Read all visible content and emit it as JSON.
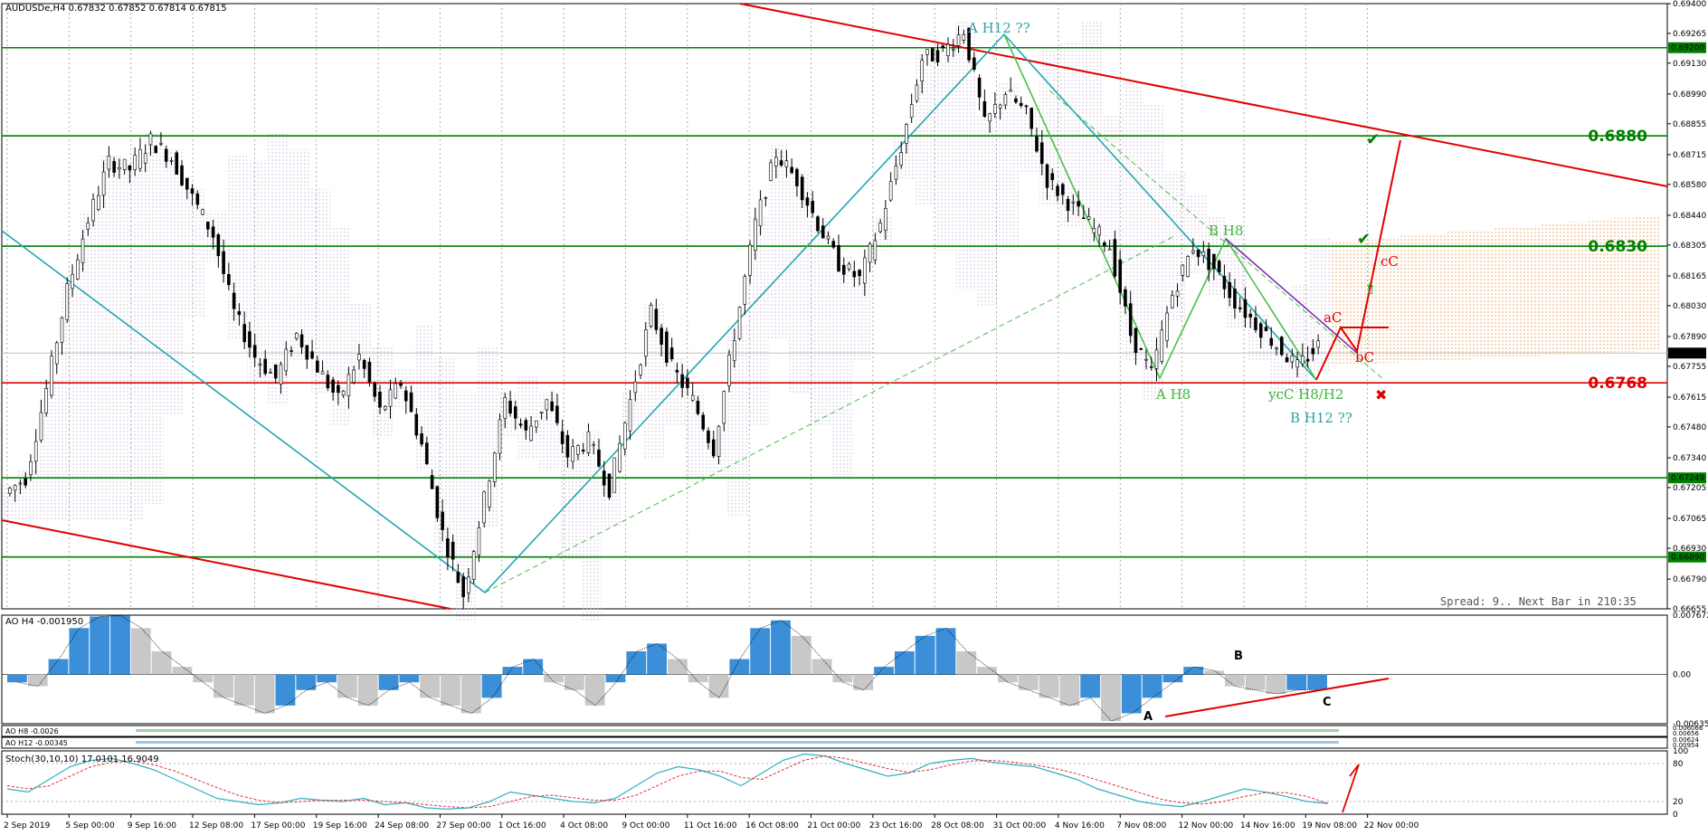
{
  "chart_data": {
    "type": "candlestick",
    "symbol_header": "AUDUSDe,H4  0.67832 0.67852 0.67814 0.67815",
    "price_ticks": [
      "0.69400",
      "0.69265",
      "0.69130",
      "0.68990",
      "0.68855",
      "0.68715",
      "0.68580",
      "0.68440",
      "0.68305",
      "0.68165",
      "0.68030",
      "0.67890",
      "0.67755",
      "0.67615",
      "0.67480",
      "0.67340",
      "0.67205",
      "0.67065",
      "0.66930",
      "0.66790",
      "0.66655"
    ],
    "ylim": [
      0.66655,
      0.694
    ],
    "time_labels": [
      "2 Sep 2019",
      "5 Sep 00:00",
      "9 Sep 16:00",
      "12 Sep 08:00",
      "17 Sep 00:00",
      "19 Sep 16:00",
      "24 Sep 08:00",
      "27 Sep 00:00",
      "1 Oct 16:00",
      "4 Oct 08:00",
      "9 Oct 00:00",
      "11 Oct 16:00",
      "16 Oct 08:00",
      "21 Oct 00:00",
      "23 Oct 16:00",
      "28 Oct 08:00",
      "31 Oct 00:00",
      "4 Nov 16:00",
      "7 Nov 08:00",
      "12 Nov 00:00",
      "14 Nov 16:00",
      "19 Nov 08:00",
      "22 Nov 00:00"
    ],
    "last_price": "0.67815",
    "price_path": [
      0.6718,
      0.6725,
      0.6765,
      0.681,
      0.6842,
      0.6868,
      0.6865,
      0.6878,
      0.687,
      0.6852,
      0.6835,
      0.68,
      0.678,
      0.677,
      0.679,
      0.6775,
      0.676,
      0.678,
      0.6755,
      0.6768,
      0.674,
      0.67,
      0.6672,
      0.6715,
      0.676,
      0.6745,
      0.676,
      0.6735,
      0.6742,
      0.672,
      0.676,
      0.68,
      0.6775,
      0.676,
      0.6738,
      0.679,
      0.684,
      0.6872,
      0.686,
      0.684,
      0.6822,
      0.6815,
      0.684,
      0.6875,
      0.6915,
      0.6918,
      0.6928,
      0.6885,
      0.69,
      0.689,
      0.686,
      0.685,
      0.684,
      0.683,
      0.679,
      0.6772,
      0.6808,
      0.683,
      0.682,
      0.6805,
      0.6795,
      0.6785,
      0.6775,
      0.6785
    ],
    "horizontal_levels": [
      {
        "price": 0.692,
        "label": "0.69200",
        "color": "#008000",
        "style": "box"
      },
      {
        "price": 0.688,
        "label": "0.6880",
        "color": "#008000",
        "style": "big"
      },
      {
        "price": 0.683,
        "label": "0.6830",
        "color": "#008000",
        "style": "big"
      },
      {
        "price": 0.6768,
        "label": "0.6768",
        "color": "#e00000",
        "style": "big"
      },
      {
        "price": 0.67249,
        "label": "0.67249",
        "color": "#008000",
        "style": "box"
      },
      {
        "price": 0.6689,
        "label": "0.66890",
        "color": "#008000",
        "style": "box"
      }
    ],
    "wave_labels": [
      {
        "text": "A H12 ??",
        "color": "#2aa6a6"
      },
      {
        "text": "B H8",
        "color": "#3cb43c"
      },
      {
        "text": "A H8",
        "color": "#3cb43c"
      },
      {
        "text": "ycC H8/H2",
        "color": "#3cb43c"
      },
      {
        "text": "B H12 ??",
        "color": "#2aa6a6"
      },
      {
        "text": "aC",
        "color": "#e00000"
      },
      {
        "text": "bC",
        "color": "#e00000"
      },
      {
        "text": "cC",
        "color": "#e00000"
      }
    ],
    "spread_text": "Spread: 9.. Next Bar in 210:35",
    "ao": {
      "title": "AO H4  -0.001950",
      "ticks": [
        "0.007672",
        "0.00",
        "-0.006351"
      ],
      "labels": [
        "A",
        "B",
        "C"
      ],
      "values": [
        -0.001,
        -0.0015,
        0.002,
        0.006,
        0.0075,
        0.0076,
        0.006,
        0.003,
        0.001,
        -0.001,
        -0.003,
        -0.004,
        -0.005,
        -0.004,
        -0.002,
        -0.001,
        -0.003,
        -0.004,
        -0.002,
        -0.001,
        -0.003,
        -0.004,
        -0.005,
        -0.003,
        0.001,
        0.002,
        -0.001,
        -0.002,
        -0.004,
        -0.001,
        0.003,
        0.004,
        0.002,
        -0.001,
        -0.003,
        0.002,
        0.006,
        0.007,
        0.005,
        0.002,
        -0.001,
        -0.002,
        0.001,
        0.003,
        0.005,
        0.006,
        0.003,
        0.001,
        -0.001,
        -0.002,
        -0.003,
        -0.004,
        -0.003,
        -0.006,
        -0.005,
        -0.003,
        -0.001,
        0.001,
        0.0005,
        -0.0015,
        -0.002,
        -0.0025,
        -0.002,
        -0.00195
      ]
    },
    "sub_indicator_1": "AO H8  -0.0026",
    "sub_indicator_2": "AO H12  -0.00345",
    "sub_ticks_1": [
      "0.006066",
      "0.00656"
    ],
    "sub_ticks_2": [
      "0.00624",
      "0.00954"
    ],
    "stoch": {
      "title": "Stoch(30,10,10) 17.0101 16.9049",
      "ticks": [
        "100",
        "80",
        "20",
        "0"
      ],
      "main": [
        40,
        35,
        55,
        75,
        85,
        88,
        80,
        70,
        55,
        40,
        25,
        20,
        15,
        18,
        25,
        22,
        20,
        25,
        15,
        18,
        10,
        8,
        10,
        20,
        35,
        30,
        25,
        20,
        18,
        25,
        45,
        65,
        75,
        70,
        60,
        45,
        65,
        85,
        95,
        92,
        80,
        70,
        60,
        65,
        80,
        85,
        88,
        82,
        78,
        75,
        65,
        55,
        40,
        30,
        20,
        15,
        12,
        20,
        30,
        40,
        35,
        28,
        20,
        17
      ],
      "signal": [
        45,
        40,
        45,
        60,
        75,
        82,
        84,
        78,
        68,
        55,
        42,
        30,
        22,
        18,
        20,
        22,
        22,
        22,
        20,
        18,
        15,
        12,
        10,
        12,
        20,
        28,
        30,
        26,
        22,
        22,
        30,
        45,
        60,
        68,
        68,
        58,
        55,
        70,
        85,
        92,
        88,
        80,
        72,
        66,
        70,
        78,
        84,
        85,
        82,
        78,
        72,
        64,
        54,
        44,
        34,
        24,
        18,
        16,
        20,
        28,
        34,
        34,
        28,
        17
      ]
    }
  }
}
